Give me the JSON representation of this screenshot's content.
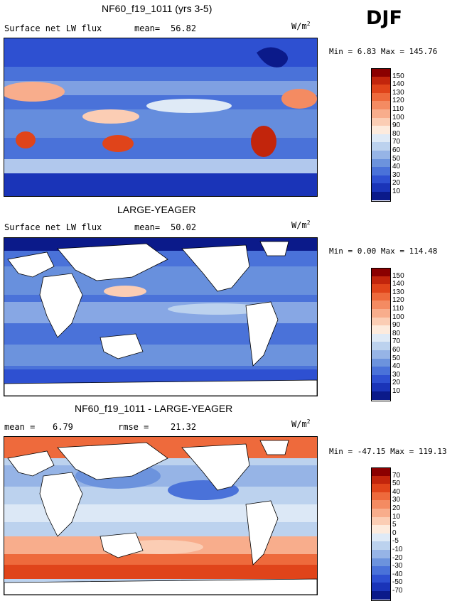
{
  "season": "DJF",
  "panels": [
    {
      "title": "NF60_f19_1011 (yrs 3-5)",
      "left_label": "Surface net LW flux",
      "stat_label": "mean=",
      "stat_value": "56.82",
      "units_base": "W/m",
      "units_exp": "2",
      "minmax": "Min =    6.83 Max = 145.76",
      "levels": [
        "150",
        "140",
        "130",
        "120",
        "110",
        "100",
        "90",
        "80",
        "70",
        "60",
        "50",
        "40",
        "30",
        "20",
        "10"
      ],
      "colors": [
        "#8b0000",
        "#c2250c",
        "#e0441a",
        "#ee6a3c",
        "#f48b62",
        "#f8ad8c",
        "#fbcdb4",
        "#fdebdd",
        "#dfeaf6",
        "#bcd2ee",
        "#96b4e6",
        "#6c93dd",
        "#4a72d9",
        "#2e50d1",
        "#1a34b8",
        "#0b1a8a"
      ]
    },
    {
      "title": "LARGE-YEAGER",
      "left_label": "Surface net LW flux",
      "stat_label": "mean=",
      "stat_value": "50.02",
      "units_base": "W/m",
      "units_exp": "2",
      "minmax": "Min =    0.00 Max = 114.48",
      "levels": [
        "150",
        "140",
        "130",
        "120",
        "110",
        "100",
        "90",
        "80",
        "70",
        "60",
        "50",
        "40",
        "30",
        "20",
        "10"
      ],
      "colors": [
        "#8b0000",
        "#c2250c",
        "#e0441a",
        "#ee6a3c",
        "#f48b62",
        "#f8ad8c",
        "#fbcdb4",
        "#fdebdd",
        "#dfeaf6",
        "#bcd2ee",
        "#96b4e6",
        "#6c93dd",
        "#4a72d9",
        "#2e50d1",
        "#1a34b8",
        "#0b1a8a"
      ]
    },
    {
      "title": "NF60_f19_1011 - LARGE-YEAGER",
      "left_label": "mean =",
      "left_value": "6.79",
      "stat_label": "rmse =",
      "stat_value": "21.32",
      "units_base": "W/m",
      "units_exp": "2",
      "minmax": "Min = -47.15 Max = 119.13",
      "levels": [
        "70",
        "50",
        "40",
        "30",
        "20",
        "10",
        "5",
        "0",
        "-5",
        "-10",
        "-20",
        "-30",
        "-40",
        "-50",
        "-70"
      ],
      "colors": [
        "#8b0000",
        "#c2250c",
        "#e0441a",
        "#ee6a3c",
        "#f48b62",
        "#f8ad8c",
        "#fbcdb4",
        "#fdebdd",
        "#dfeaf6",
        "#bcd2ee",
        "#96b4e6",
        "#6c93dd",
        "#4a72d9",
        "#2e50d1",
        "#1a34b8",
        "#0b1a8a"
      ]
    }
  ]
}
